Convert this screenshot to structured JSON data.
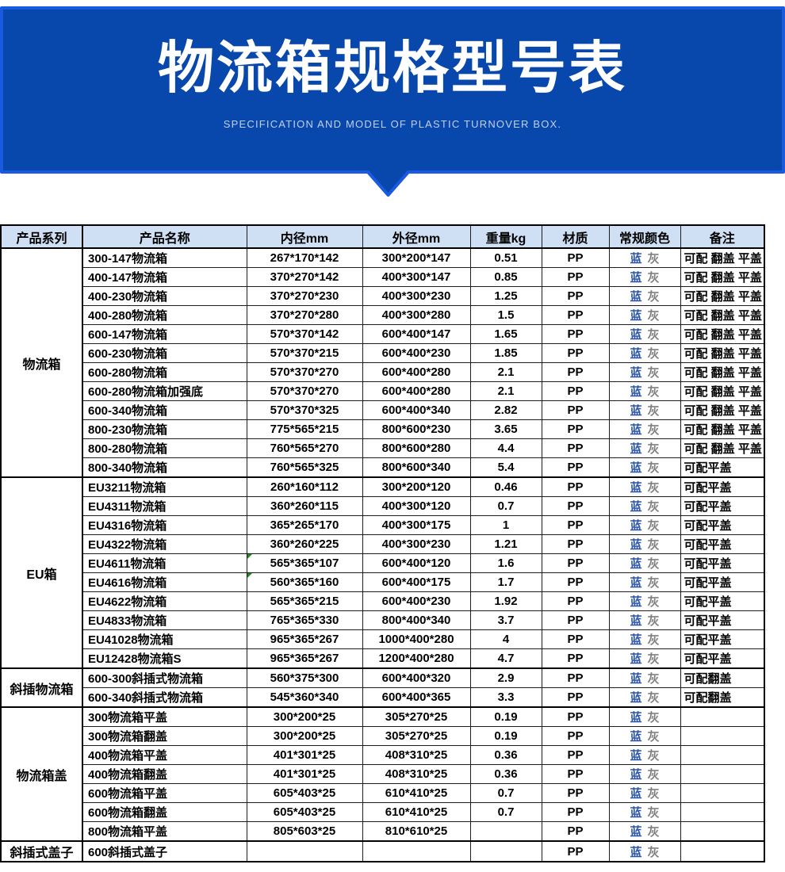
{
  "banner": {
    "title": "物流箱规格型号表",
    "subtitle": "SPECIFICATION AND MODEL OF PLASTIC TURNOVER BOX.",
    "fill": "#0847ac",
    "edge": "#1a5ae0"
  },
  "colors": {
    "banner_fill": "#0847ac",
    "banner_edge": "#1a5ae0",
    "header_bg": "#cfdff4",
    "blue_label": "#2b55a6",
    "gray_label": "#7f7f7f",
    "marker_green": "#1e8a1e",
    "border": "#1d1d1d"
  },
  "table": {
    "columns": [
      "产品系列",
      "产品名称",
      "内径mm",
      "外径mm",
      "重量kg",
      "材质",
      "常规颜色",
      "备注"
    ],
    "color_labels": {
      "blue": "蓝",
      "gray": "灰"
    },
    "sections": [
      {
        "series": "物流箱",
        "rows": [
          {
            "name": "300-147物流箱",
            "inner": "267*170*142",
            "outer": "300*200*147",
            "weight": "0.51",
            "material": "PP",
            "note": "可配 翻盖 平盖"
          },
          {
            "name": "400-147物流箱",
            "inner": "370*270*142",
            "outer": "400*300*147",
            "weight": "0.85",
            "material": "PP",
            "note": "可配 翻盖 平盖"
          },
          {
            "name": "400-230物流箱",
            "inner": "370*270*230",
            "outer": "400*300*230",
            "weight": "1.25",
            "material": "PP",
            "note": "可配 翻盖 平盖"
          },
          {
            "name": "400-280物流箱",
            "inner": "370*270*280",
            "outer": "400*300*280",
            "weight": "1.5",
            "material": "PP",
            "note": "可配 翻盖 平盖"
          },
          {
            "name": "600-147物流箱",
            "inner": "570*370*142",
            "outer": "600*400*147",
            "weight": "1.65",
            "material": "PP",
            "note": "可配 翻盖 平盖"
          },
          {
            "name": "600-230物流箱",
            "inner": "570*370*215",
            "outer": "600*400*230",
            "weight": "1.85",
            "material": "PP",
            "note": "可配 翻盖 平盖"
          },
          {
            "name": "600-280物流箱",
            "inner": "570*370*270",
            "outer": "600*400*280",
            "weight": "2.1",
            "material": "PP",
            "note": "可配 翻盖 平盖"
          },
          {
            "name": "600-280物流箱加强底",
            "inner": "570*370*270",
            "outer": "600*400*280",
            "weight": "2.1",
            "material": "PP",
            "note": "可配 翻盖 平盖"
          },
          {
            "name": "600-340物流箱",
            "inner": "570*370*325",
            "outer": "600*400*340",
            "weight": "2.82",
            "material": "PP",
            "note": "可配 翻盖 平盖"
          },
          {
            "name": "800-230物流箱",
            "inner": "775*565*215",
            "outer": "800*600*230",
            "weight": "3.65",
            "material": "PP",
            "note": "可配 翻盖 平盖"
          },
          {
            "name": "800-280物流箱",
            "inner": "760*565*270",
            "outer": "800*600*280",
            "weight": "4.4",
            "material": "PP",
            "note": "可配 翻盖 平盖"
          },
          {
            "name": "800-340物流箱",
            "inner": "760*565*325",
            "outer": "800*600*340",
            "weight": "5.4",
            "material": "PP",
            "note": "可配平盖"
          }
        ]
      },
      {
        "series": "EU箱",
        "rows": [
          {
            "name": "EU3211物流箱",
            "inner": "260*160*112",
            "outer": "300*200*120",
            "weight": "0.46",
            "material": "PP",
            "note": "可配平盖"
          },
          {
            "name": "EU4311物流箱",
            "inner": "360*260*115",
            "outer": "400*300*120",
            "weight": "0.7",
            "material": "PP",
            "note": "可配平盖"
          },
          {
            "name": "EU4316物流箱",
            "inner": "365*265*170",
            "outer": "400*300*175",
            "weight": "1",
            "material": "PP",
            "note": "可配平盖"
          },
          {
            "name": "EU4322物流箱",
            "inner": "360*260*225",
            "outer": "400*300*230",
            "weight": "1.21",
            "material": "PP",
            "note": "可配平盖"
          },
          {
            "name": "EU4611物流箱",
            "inner": "565*365*107",
            "outer": "600*400*120",
            "weight": "1.6",
            "material": "PP",
            "note": "可配平盖",
            "marker": true
          },
          {
            "name": "EU4616物流箱",
            "inner": "560*365*160",
            "outer": "600*400*175",
            "weight": "1.7",
            "material": "PP",
            "note": "可配平盖",
            "marker": true
          },
          {
            "name": "EU4622物流箱",
            "inner": "565*365*215",
            "outer": "600*400*230",
            "weight": "1.92",
            "material": "PP",
            "note": "可配平盖"
          },
          {
            "name": "EU4833物流箱",
            "inner": "765*365*330",
            "outer": "800*400*340",
            "weight": "3.7",
            "material": "PP",
            "note": "可配平盖"
          },
          {
            "name": "EU41028物流箱",
            "inner": "965*365*267",
            "outer": "1000*400*280",
            "weight": "4",
            "material": "PP",
            "note": "可配平盖"
          },
          {
            "name": "EU12428物流箱S",
            "inner": "965*365*267",
            "outer": "1200*400*280",
            "weight": "4.7",
            "material": "PP",
            "note": "可配平盖"
          }
        ]
      },
      {
        "series": "斜插物流箱",
        "rows": [
          {
            "name": "600-300斜插式物流箱",
            "inner": "560*375*300",
            "outer": "600*400*320",
            "weight": "2.9",
            "material": "PP",
            "note": "可配翻盖"
          },
          {
            "name": "600-340斜插式物流箱",
            "inner": "545*360*340",
            "outer": "600*400*365",
            "weight": "3.3",
            "material": "PP",
            "note": "可配翻盖"
          }
        ]
      },
      {
        "series": "物流箱盖",
        "rows": [
          {
            "name": "300物流箱平盖",
            "inner": "300*200*25",
            "outer": "305*270*25",
            "weight": "0.19",
            "material": "PP",
            "note": ""
          },
          {
            "name": "300物流箱翻盖",
            "inner": "300*200*25",
            "outer": "305*270*25",
            "weight": "0.19",
            "material": "PP",
            "note": ""
          },
          {
            "name": "400物流箱平盖",
            "inner": "401*301*25",
            "outer": "408*310*25",
            "weight": "0.36",
            "material": "PP",
            "note": ""
          },
          {
            "name": "400物流箱翻盖",
            "inner": "401*301*25",
            "outer": "408*310*25",
            "weight": "0.36",
            "material": "PP",
            "note": ""
          },
          {
            "name": "600物流箱平盖",
            "inner": "605*403*25",
            "outer": "610*410*25",
            "weight": "0.7",
            "material": "PP",
            "note": ""
          },
          {
            "name": "600物流箱翻盖",
            "inner": "605*403*25",
            "outer": "610*410*25",
            "weight": "0.7",
            "material": "PP",
            "note": ""
          },
          {
            "name": "800物流箱平盖",
            "inner": "805*603*25",
            "outer": "810*610*25",
            "weight": "",
            "material": "PP",
            "note": ""
          }
        ]
      },
      {
        "series": "斜插式盖子",
        "rows": [
          {
            "name": "600斜插式盖子",
            "inner": "",
            "outer": "",
            "weight": "",
            "material": "PP",
            "note": ""
          }
        ]
      }
    ]
  }
}
